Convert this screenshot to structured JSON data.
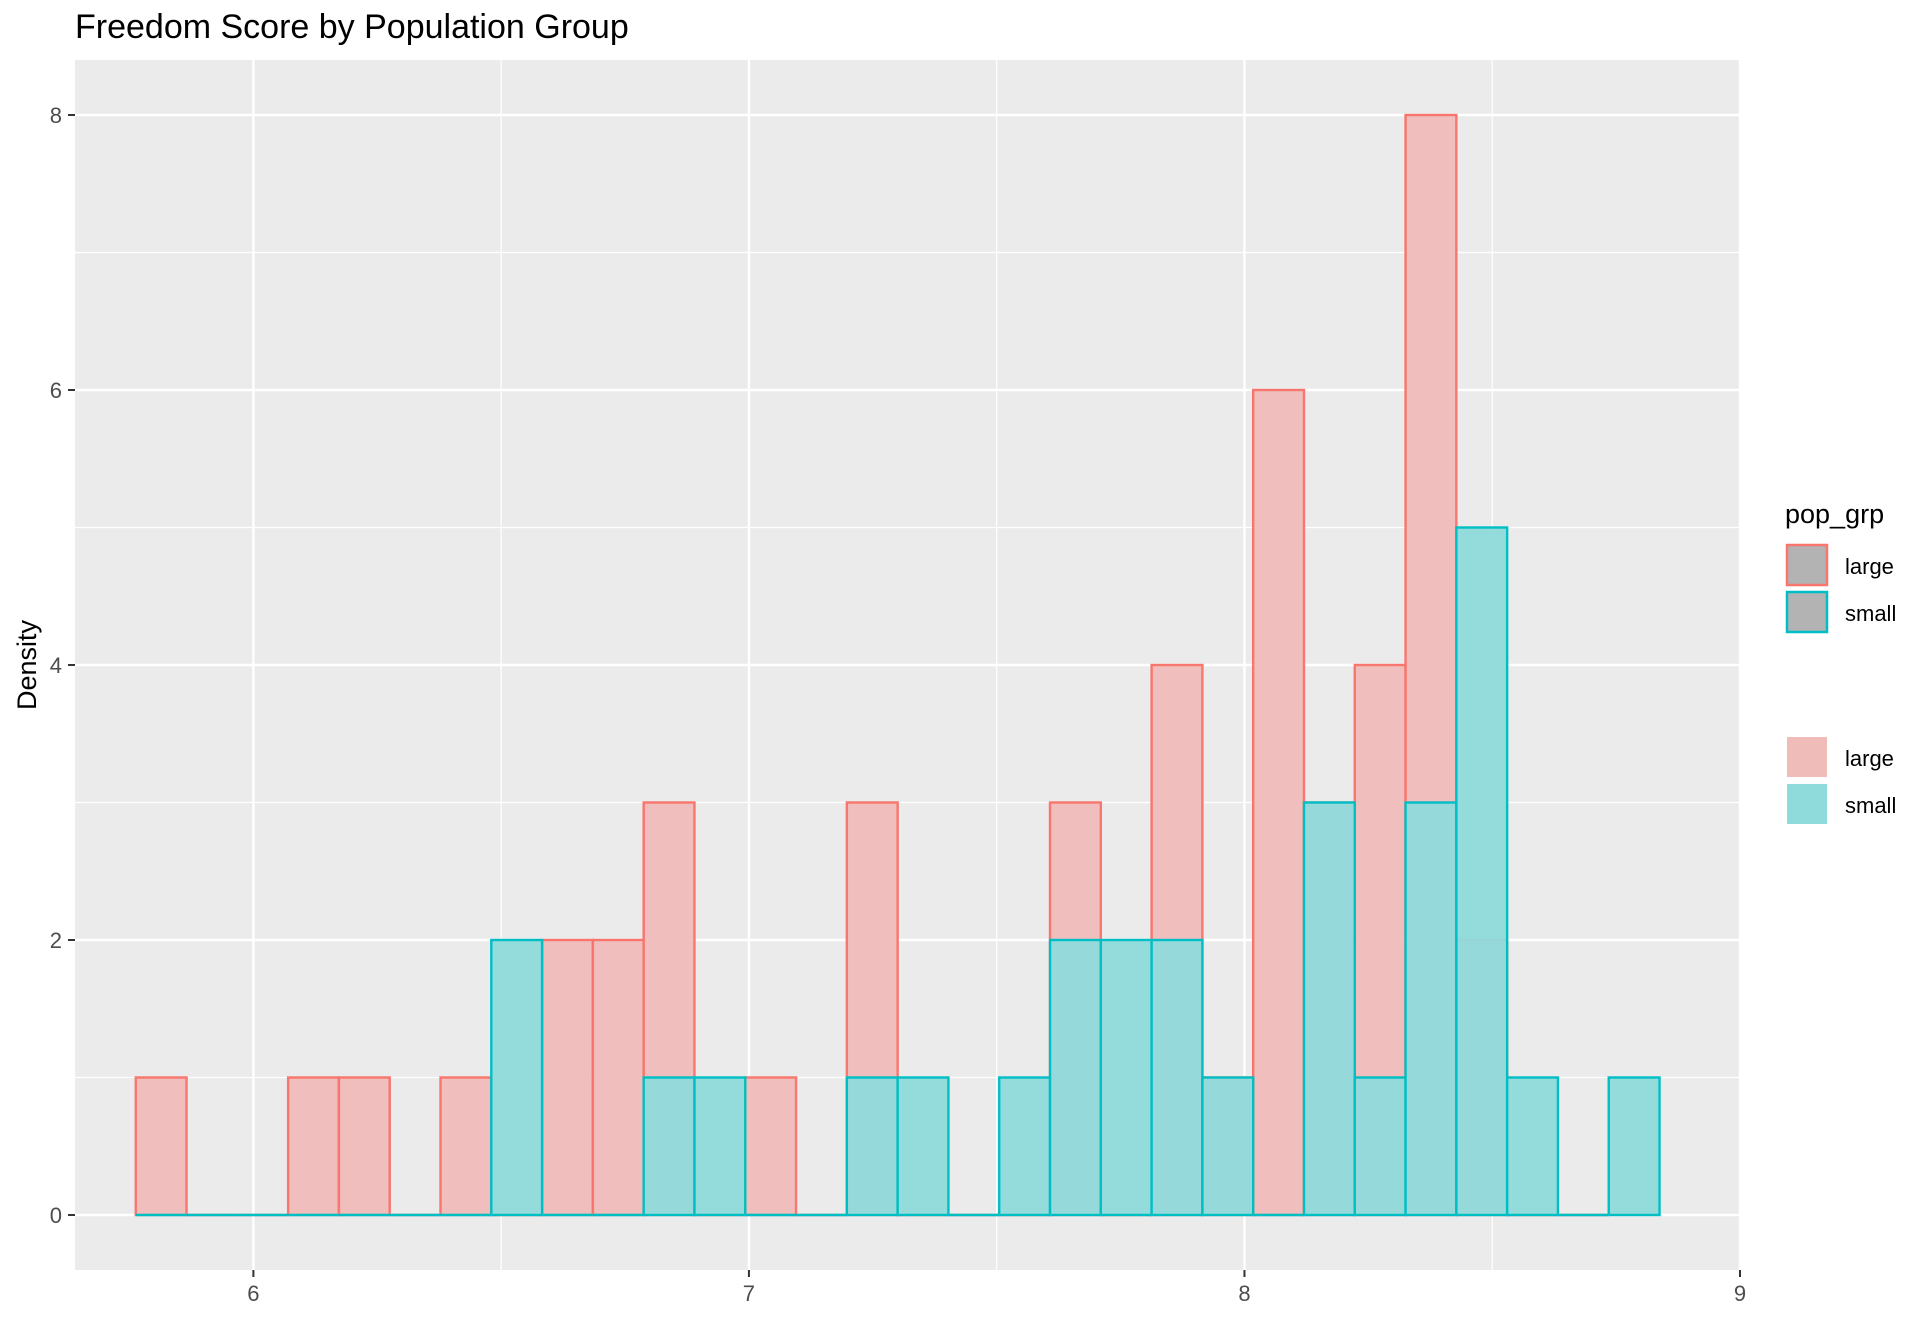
{
  "chart_data": {
    "type": "bar",
    "title": "Freedom Score by Population Group",
    "xlabel": "",
    "ylabel": "Density",
    "xlim": [
      5.64,
      9.0
    ],
    "ylim": [
      -0.4,
      8.4
    ],
    "x_ticks": [
      6,
      7,
      8,
      9
    ],
    "y_ticks": [
      0,
      2,
      4,
      6,
      8
    ],
    "grid": true,
    "bin_width": 0.1025,
    "bin_start": 5.7626,
    "legend_placement": "right",
    "colors": {
      "large_stroke": "#F8766D",
      "large_fill": "#F0BCB9",
      "small_stroke": "#00BFC4",
      "small_fill": "#8FDADB",
      "panel_bg": "#EBEBEB",
      "grid": "#FFFFFF",
      "legend_key_fill": "#B3B3B3"
    },
    "series": [
      {
        "name": "large",
        "values": [
          1,
          0,
          0,
          1,
          1,
          0,
          1,
          0,
          2,
          2,
          3,
          0,
          1,
          0,
          3,
          0,
          0,
          0,
          3,
          0,
          4,
          1,
          6,
          3,
          4,
          8,
          2,
          0,
          0
        ]
      },
      {
        "name": "small",
        "values": [
          0,
          0,
          0,
          0,
          0,
          0,
          0,
          2,
          0,
          0,
          1,
          1,
          0,
          0,
          1,
          1,
          0,
          1,
          2,
          2,
          2,
          1,
          0,
          3,
          1,
          3,
          5,
          1,
          0,
          1
        ]
      }
    ],
    "legend": {
      "title": "pop_grp",
      "color_entries": [
        "large",
        "small"
      ],
      "fill_entries": [
        "large",
        "small"
      ]
    }
  }
}
